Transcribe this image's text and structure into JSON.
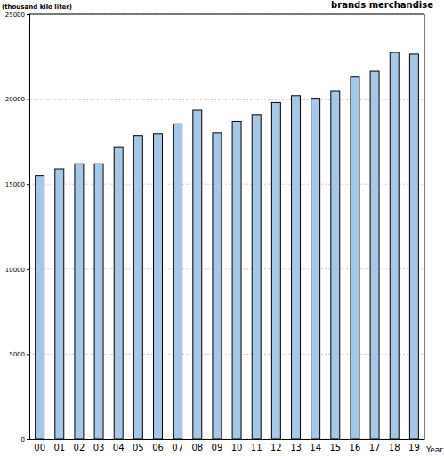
{
  "chart_data": {
    "type": "bar",
    "title": "brands merchandise",
    "y_label": "(thousand kilo liter)",
    "x_label": "Year",
    "categories": [
      "00",
      "01",
      "02",
      "03",
      "04",
      "05",
      "06",
      "07",
      "08",
      "09",
      "10",
      "11",
      "12",
      "13",
      "14",
      "15",
      "16",
      "17",
      "18",
      "19"
    ],
    "values": [
      15500,
      15900,
      16200,
      16200,
      17200,
      17850,
      17950,
      18550,
      19350,
      18000,
      18700,
      19100,
      19800,
      20200,
      20050,
      20500,
      21300,
      21650,
      22750,
      22650
    ],
    "color": "#a6c8e8",
    "ylim": [
      0,
      25000
    ],
    "yticks": [
      0,
      5000,
      10000,
      15000,
      20000,
      25000
    ],
    "grid": true
  }
}
